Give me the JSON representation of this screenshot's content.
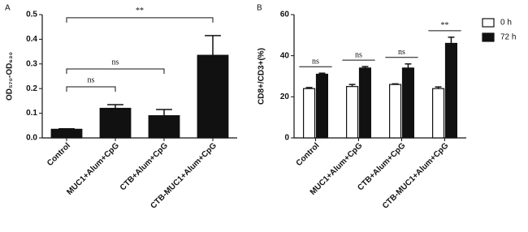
{
  "chart_data": [
    {
      "type": "bar",
      "panel": "A",
      "ylabel": "OD₅₇₀-OD₆₃₀",
      "categories": [
        "Control",
        "MUC1+Alum+CpG",
        "CTB+Alum+CpG",
        "CTB-MUC1+Alum+CpG"
      ],
      "values": [
        0.035,
        0.12,
        0.09,
        0.335
      ],
      "errors": [
        0.002,
        0.015,
        0.025,
        0.08
      ],
      "color": "#111111",
      "ylim": [
        0,
        0.5
      ],
      "yticks": [
        {
          "value": 0,
          "label": "0.0"
        },
        0.1,
        0.2,
        0.3,
        0.4,
        0.5
      ],
      "annotations": [
        {
          "text": "ns",
          "from": "Control",
          "to": "MUC1+Alum+CpG"
        },
        {
          "text": "ns",
          "from": "Control",
          "to": "CTB+Alum+CpG"
        },
        {
          "text": "**",
          "from": "Control",
          "to": "CTB-MUC1+Alum+CpG"
        }
      ]
    },
    {
      "type": "bar",
      "panel": "B",
      "ylabel": "CD8+/CD3+(%)",
      "categories": [
        "Control",
        "MUC1+Alum+CpG",
        "CTB+Alum+CpG",
        "CTB-MUC1+Alum+CpG"
      ],
      "series": [
        {
          "name": "0 h",
          "color": "#ffffff",
          "values": [
            24,
            25,
            26,
            24
          ],
          "errors": [
            0.5,
            1,
            0.3,
            0.8
          ]
        },
        {
          "name": "72 h",
          "color": "#111111",
          "values": [
            31,
            34,
            34,
            46
          ],
          "errors": [
            0.5,
            0.7,
            2,
            3
          ]
        }
      ],
      "ylim": [
        0,
        60
      ],
      "yticks": [
        0,
        20,
        40,
        60
      ],
      "legend": "right",
      "annotations": [
        {
          "text": "ns",
          "category": "Control"
        },
        {
          "text": "ns",
          "category": "MUC1+Alum+CpG"
        },
        {
          "text": "ns",
          "category": "CTB+Alum+CpG"
        },
        {
          "text": "**",
          "category": "CTB-MUC1+Alum+CpG"
        }
      ]
    }
  ]
}
